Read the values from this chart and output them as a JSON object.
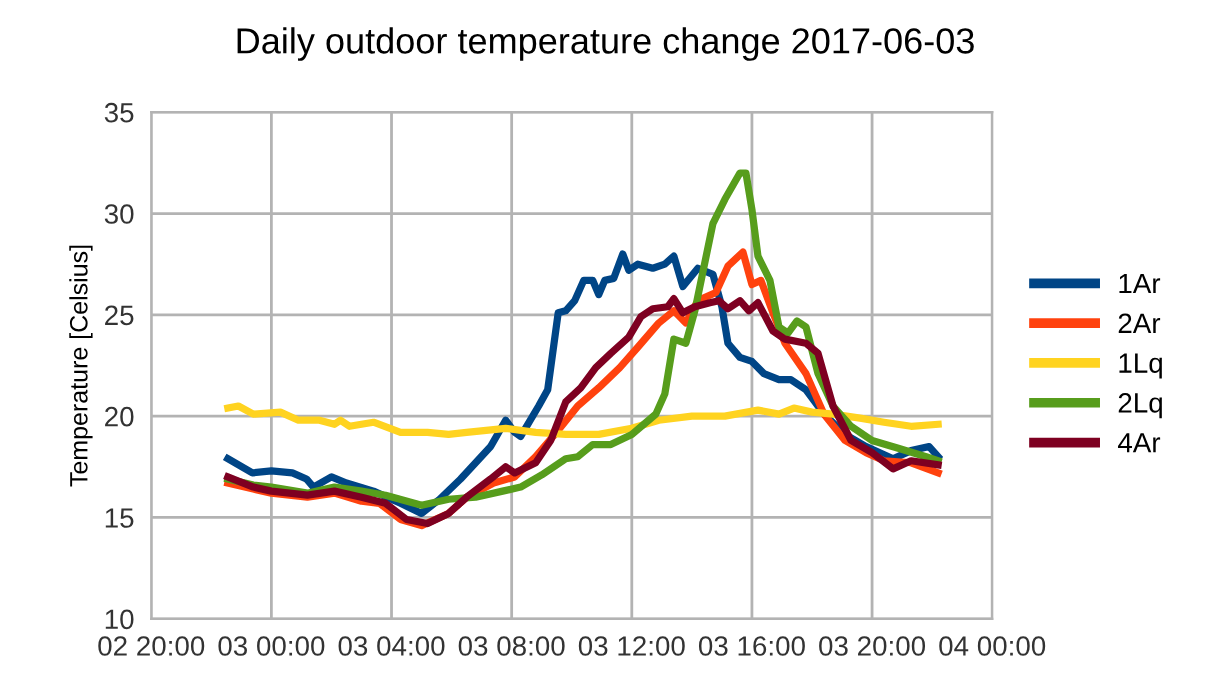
{
  "chart_data": {
    "type": "line",
    "title": "Daily outdoor temperature change 2017-06-03",
    "ylabel": "Temperature [Celsius]",
    "xlim": [
      "2017-06-02T20:00",
      "2017-06-04T00:00"
    ],
    "xticks": [
      {
        "value": "2017-06-02T20:00",
        "label": "02 20:00"
      },
      {
        "value": "2017-06-03T00:00",
        "label": "03 00:00"
      },
      {
        "value": "2017-06-03T04:00",
        "label": "03 04:00"
      },
      {
        "value": "2017-06-03T08:00",
        "label": "03 08:00"
      },
      {
        "value": "2017-06-03T12:00",
        "label": "03 12:00"
      },
      {
        "value": "2017-06-03T16:00",
        "label": "03 16:00"
      },
      {
        "value": "2017-06-03T20:00",
        "label": "03 20:00"
      },
      {
        "value": "2017-06-04T00:00",
        "label": "04 00:00"
      }
    ],
    "ylim": [
      10,
      35
    ],
    "yticks": [
      10,
      15,
      20,
      25,
      30,
      35
    ],
    "grid": true,
    "legend": "right",
    "marker": "none",
    "line_style": "solid",
    "series": [
      {
        "name": "1Ar",
        "color": "#004586",
        "x": [
          "2017-06-02T22:33",
          "2017-06-02T23:22",
          "2017-06-03T00:00",
          "2017-06-03T00:42",
          "2017-06-03T01:10",
          "2017-06-03T01:24",
          "2017-06-03T02:00",
          "2017-06-03T02:30",
          "2017-06-03T03:24",
          "2017-06-03T04:18",
          "2017-06-03T05:00",
          "2017-06-03T05:36",
          "2017-06-03T06:18",
          "2017-06-03T07:18",
          "2017-06-03T07:48",
          "2017-06-03T08:06",
          "2017-06-03T08:18",
          "2017-06-03T08:54",
          "2017-06-03T09:12",
          "2017-06-03T09:33",
          "2017-06-03T09:48",
          "2017-06-03T10:06",
          "2017-06-03T10:24",
          "2017-06-03T10:42",
          "2017-06-03T10:54",
          "2017-06-03T11:06",
          "2017-06-03T11:24",
          "2017-06-03T11:42",
          "2017-06-03T11:54",
          "2017-06-03T12:12",
          "2017-06-03T12:42",
          "2017-06-03T13:06",
          "2017-06-03T13:24",
          "2017-06-03T13:42",
          "2017-06-03T14:12",
          "2017-06-03T14:42",
          "2017-06-03T15:00",
          "2017-06-03T15:12",
          "2017-06-03T15:36",
          "2017-06-03T16:00",
          "2017-06-03T16:24",
          "2017-06-03T16:54",
          "2017-06-03T17:18",
          "2017-06-03T17:48",
          "2017-06-03T18:24",
          "2017-06-03T19:06",
          "2017-06-03T19:48",
          "2017-06-03T20:42",
          "2017-06-03T21:18",
          "2017-06-03T21:54",
          "2017-06-03T22:12"
        ],
        "values": [
          17.9,
          17.2,
          17.3,
          17.2,
          16.9,
          16.5,
          17.0,
          16.7,
          16.3,
          15.7,
          15.2,
          15.9,
          16.9,
          18.5,
          19.8,
          19.2,
          19.0,
          20.5,
          21.3,
          25.1,
          25.2,
          25.7,
          26.7,
          26.7,
          26.0,
          26.7,
          26.8,
          28.0,
          27.2,
          27.5,
          27.3,
          27.5,
          27.9,
          26.4,
          27.3,
          27.0,
          25.4,
          23.6,
          22.9,
          22.7,
          22.1,
          21.8,
          21.8,
          21.3,
          20.1,
          19.1,
          18.5,
          17.9,
          18.3,
          18.5,
          18.0
        ]
      },
      {
        "name": "2Ar",
        "color": "#ff420e",
        "x": [
          "2017-06-02T22:33",
          "2017-06-02T23:24",
          "2017-06-03T00:00",
          "2017-06-03T01:12",
          "2017-06-03T02:06",
          "2017-06-03T03:00",
          "2017-06-03T03:36",
          "2017-06-03T04:18",
          "2017-06-03T05:00",
          "2017-06-03T05:54",
          "2017-06-03T06:30",
          "2017-06-03T07:24",
          "2017-06-03T08:06",
          "2017-06-03T08:48",
          "2017-06-03T09:33",
          "2017-06-03T10:12",
          "2017-06-03T10:54",
          "2017-06-03T11:36",
          "2017-06-03T12:12",
          "2017-06-03T12:54",
          "2017-06-03T13:24",
          "2017-06-03T13:48",
          "2017-06-03T14:12",
          "2017-06-03T14:48",
          "2017-06-03T15:12",
          "2017-06-03T15:42",
          "2017-06-03T16:00",
          "2017-06-03T16:18",
          "2017-06-03T16:42",
          "2017-06-03T17:06",
          "2017-06-03T17:48",
          "2017-06-03T18:24",
          "2017-06-03T19:06",
          "2017-06-03T19:48",
          "2017-06-03T20:24",
          "2017-06-03T21:18",
          "2017-06-03T22:12"
        ],
        "values": [
          16.7,
          16.4,
          16.2,
          16.0,
          16.2,
          15.8,
          15.7,
          14.9,
          14.6,
          15.2,
          16.0,
          16.7,
          17.0,
          18.0,
          19.3,
          20.5,
          21.4,
          22.4,
          23.4,
          24.6,
          25.2,
          24.6,
          25.7,
          26.1,
          27.4,
          28.1,
          26.5,
          26.7,
          25.1,
          23.6,
          22.1,
          20.1,
          18.8,
          18.2,
          17.8,
          17.7,
          17.2
        ]
      },
      {
        "name": "1Lq",
        "color": "#ffd320",
        "x": [
          "2017-06-02T22:33",
          "2017-06-02T22:54",
          "2017-06-02T23:24",
          "2017-06-03T00:18",
          "2017-06-03T00:54",
          "2017-06-03T01:36",
          "2017-06-03T02:06",
          "2017-06-03T02:18",
          "2017-06-03T02:36",
          "2017-06-03T03:24",
          "2017-06-03T04:18",
          "2017-06-03T05:12",
          "2017-06-03T05:54",
          "2017-06-03T06:30",
          "2017-06-03T07:48",
          "2017-06-03T08:48",
          "2017-06-03T09:48",
          "2017-06-03T10:54",
          "2017-06-03T12:00",
          "2017-06-03T12:54",
          "2017-06-03T14:00",
          "2017-06-03T15:06",
          "2017-06-03T16:12",
          "2017-06-03T16:54",
          "2017-06-03T17:24",
          "2017-06-03T18:00",
          "2017-06-03T18:42",
          "2017-06-03T19:36",
          "2017-06-03T20:24",
          "2017-06-03T21:18",
          "2017-06-03T22:12"
        ],
        "values": [
          20.4,
          20.5,
          20.1,
          20.2,
          19.8,
          19.8,
          19.6,
          19.8,
          19.5,
          19.7,
          19.2,
          19.2,
          19.1,
          19.2,
          19.4,
          19.2,
          19.1,
          19.1,
          19.4,
          19.8,
          20.0,
          20.0,
          20.3,
          20.1,
          20.4,
          20.2,
          20.1,
          19.9,
          19.7,
          19.5,
          19.6
        ]
      },
      {
        "name": "2Lq",
        "color": "#579d1c",
        "x": [
          "2017-06-02T22:33",
          "2017-06-02T23:24",
          "2017-06-03T00:00",
          "2017-06-03T01:12",
          "2017-06-03T02:06",
          "2017-06-03T03:00",
          "2017-06-03T03:48",
          "2017-06-03T05:00",
          "2017-06-03T05:54",
          "2017-06-03T06:48",
          "2017-06-03T07:42",
          "2017-06-03T08:18",
          "2017-06-03T09:00",
          "2017-06-03T09:48",
          "2017-06-03T10:12",
          "2017-06-03T10:42",
          "2017-06-03T11:18",
          "2017-06-03T12:00",
          "2017-06-03T12:48",
          "2017-06-03T13:06",
          "2017-06-03T13:24",
          "2017-06-03T13:48",
          "2017-06-03T14:06",
          "2017-06-03T14:42",
          "2017-06-03T15:06",
          "2017-06-03T15:36",
          "2017-06-03T15:48",
          "2017-06-03T16:00",
          "2017-06-03T16:12",
          "2017-06-03T16:36",
          "2017-06-03T16:54",
          "2017-06-03T17:12",
          "2017-06-03T17:30",
          "2017-06-03T17:48",
          "2017-06-03T18:12",
          "2017-06-03T18:42",
          "2017-06-03T19:18",
          "2017-06-03T20:00",
          "2017-06-03T20:54",
          "2017-06-03T21:48",
          "2017-06-03T22:12"
        ],
        "values": [
          16.9,
          16.6,
          16.5,
          16.2,
          16.5,
          16.3,
          16.1,
          15.6,
          15.9,
          16.0,
          16.3,
          16.5,
          17.1,
          17.9,
          18.0,
          18.6,
          18.6,
          19.1,
          20.1,
          21.1,
          23.8,
          23.6,
          25.2,
          29.5,
          30.7,
          32.0,
          32.0,
          30.2,
          27.9,
          26.7,
          24.4,
          24.1,
          24.7,
          24.4,
          22.1,
          20.5,
          19.5,
          18.8,
          18.4,
          18.0,
          17.8
        ]
      },
      {
        "name": "4Ar",
        "color": "#7e0021",
        "x": [
          "2017-06-02T22:33",
          "2017-06-02T23:24",
          "2017-06-03T00:00",
          "2017-06-03T01:12",
          "2017-06-03T02:06",
          "2017-06-03T03:00",
          "2017-06-03T03:48",
          "2017-06-03T04:30",
          "2017-06-03T05:12",
          "2017-06-03T05:54",
          "2017-06-03T06:30",
          "2017-06-03T07:18",
          "2017-06-03T07:48",
          "2017-06-03T08:06",
          "2017-06-03T08:48",
          "2017-06-03T09:18",
          "2017-06-03T09:48",
          "2017-06-03T10:18",
          "2017-06-03T10:48",
          "2017-06-03T11:18",
          "2017-06-03T11:54",
          "2017-06-03T12:18",
          "2017-06-03T12:42",
          "2017-06-03T13:12",
          "2017-06-03T13:24",
          "2017-06-03T13:42",
          "2017-06-03T14:06",
          "2017-06-03T14:36",
          "2017-06-03T14:54",
          "2017-06-03T15:12",
          "2017-06-03T15:36",
          "2017-06-03T15:54",
          "2017-06-03T16:12",
          "2017-06-03T16:42",
          "2017-06-03T17:06",
          "2017-06-03T17:48",
          "2017-06-03T18:12",
          "2017-06-03T18:42",
          "2017-06-03T19:18",
          "2017-06-03T20:00",
          "2017-06-03T20:42",
          "2017-06-03T21:18",
          "2017-06-03T22:12"
        ],
        "values": [
          17.0,
          16.5,
          16.3,
          16.1,
          16.3,
          16.0,
          15.7,
          14.9,
          14.7,
          15.2,
          16.0,
          16.9,
          17.5,
          17.2,
          17.7,
          18.8,
          20.7,
          21.4,
          22.4,
          23.1,
          23.9,
          24.9,
          25.3,
          25.4,
          25.8,
          25.1,
          25.4,
          25.6,
          25.7,
          25.3,
          25.7,
          25.2,
          25.6,
          24.2,
          23.8,
          23.6,
          23.1,
          20.5,
          18.8,
          18.2,
          17.4,
          17.8,
          17.6
        ]
      }
    ]
  }
}
